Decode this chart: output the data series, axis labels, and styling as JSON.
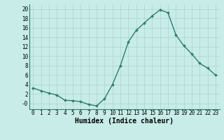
{
  "x": [
    0,
    1,
    2,
    3,
    4,
    5,
    6,
    7,
    8,
    9,
    10,
    11,
    12,
    13,
    14,
    15,
    16,
    17,
    18,
    19,
    20,
    21,
    22,
    23
  ],
  "y": [
    3.3,
    2.7,
    2.2,
    1.8,
    0.7,
    0.6,
    0.4,
    -0.2,
    -0.5,
    1.0,
    4.0,
    8.0,
    13.0,
    15.5,
    17.0,
    18.5,
    19.8,
    19.2,
    14.5,
    12.2,
    10.5,
    8.5,
    7.5,
    6.0
  ],
  "line_color": "#2e7d6e",
  "marker": "D",
  "marker_size": 2.0,
  "line_width": 1.0,
  "xlabel": "Humidex (Indice chaleur)",
  "xlabel_fontsize": 7,
  "ylabel": "",
  "ylim": [
    -1.2,
    21.0
  ],
  "xlim": [
    -0.5,
    23.5
  ],
  "yticks": [
    0,
    2,
    4,
    6,
    8,
    10,
    12,
    14,
    16,
    18,
    20
  ],
  "ytick_labels": [
    "-0",
    "2",
    "4",
    "6",
    "8",
    "10",
    "12",
    "14",
    "16",
    "18",
    "20"
  ],
  "xticks": [
    0,
    1,
    2,
    3,
    4,
    5,
    6,
    7,
    8,
    9,
    10,
    11,
    12,
    13,
    14,
    15,
    16,
    17,
    18,
    19,
    20,
    21,
    22,
    23
  ],
  "background_color": "#c8ece8",
  "grid_color": "#aad4d0",
  "tick_fontsize": 5.5
}
